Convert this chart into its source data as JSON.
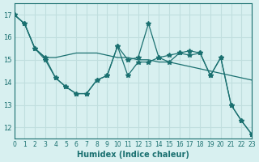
{
  "xlabel": "Humidex (Indice chaleur)",
  "ylabel": "",
  "bg_color": "#d8f0f0",
  "grid_color": "#c0dede",
  "line_color": "#1a7070",
  "xlim": [
    0,
    23
  ],
  "ylim": [
    11.5,
    17.5
  ],
  "yticks": [
    12,
    13,
    14,
    15,
    16,
    17
  ],
  "xticks": [
    0,
    1,
    2,
    3,
    4,
    5,
    6,
    7,
    8,
    9,
    10,
    11,
    12,
    13,
    14,
    15,
    16,
    17,
    18,
    19,
    20,
    21,
    22,
    23
  ],
  "series": [
    [
      17.0,
      16.6,
      15.5,
      15.0,
      14.2,
      13.8,
      13.5,
      13.5,
      14.1,
      14.3,
      15.6,
      14.3,
      14.9,
      14.9,
      15.1,
      14.9,
      15.3,
      15.2,
      15.3,
      14.3,
      15.1,
      13.0,
      12.3,
      11.7
    ],
    [
      17.0,
      16.6,
      15.5,
      15.1,
      15.1,
      15.2,
      15.3,
      15.3,
      15.3,
      15.2,
      15.1,
      15.1,
      15.0,
      15.0,
      14.9,
      14.9,
      14.8,
      14.7,
      14.6,
      14.5,
      14.4,
      14.3,
      14.2,
      14.1
    ],
    [
      17.0,
      16.6,
      15.5,
      15.1,
      14.2,
      13.8,
      13.5,
      13.5,
      14.1,
      14.3,
      15.6,
      15.0,
      15.1,
      16.6,
      15.1,
      15.2,
      15.3,
      15.4,
      15.3,
      14.3,
      15.1,
      13.0,
      12.3,
      11.7
    ]
  ]
}
